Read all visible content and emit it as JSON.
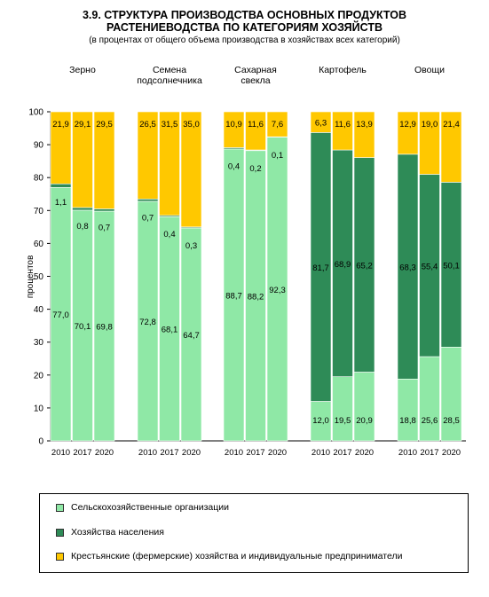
{
  "title_line1": "3.9. СТРУКТУРА ПРОИЗВОДСТВА ОСНОВНЫХ ПРОДУКТОВ",
  "title_line2": "РАСТЕНИЕВОДСТВА ПО КАТЕГОРИЯМ ХОЗЯЙСТВ",
  "subtitle": "(в процентах от общего объема производства в хозяйствах всех категорий)",
  "legend": {
    "items": [
      {
        "label": "Сельскохозяйственные организации",
        "color": "#8fe8a6"
      },
      {
        "label": "Хозяйства населения",
        "color": "#2e8b57"
      },
      {
        "label": "Крестьянские (фермерские) хозяйства и индивидуальные предприниматели",
        "color": "#ffc800"
      }
    ]
  },
  "chart_data": {
    "type": "bar",
    "stacked": true,
    "ylabel": "процентов",
    "ylim": [
      0,
      100
    ],
    "yticks": [
      0,
      10,
      20,
      30,
      40,
      50,
      60,
      70,
      80,
      90,
      100
    ],
    "grid": false,
    "legend_position": "bottom",
    "groups": [
      {
        "name_lines": [
          "Зерно"
        ],
        "years": [
          "2010",
          "2017",
          "2020"
        ],
        "series": {
          "org": [
            77.0,
            70.1,
            69.8
          ],
          "hh": [
            1.1,
            0.8,
            0.7
          ],
          "farm": [
            21.9,
            29.1,
            29.5
          ]
        },
        "labels": {
          "org": [
            "77,0",
            "70,1",
            "69,8"
          ],
          "hh": [
            "1,1",
            "0,8",
            "0,7"
          ],
          "farm": [
            "21,9",
            "29,1",
            "29,5"
          ]
        }
      },
      {
        "name_lines": [
          "Семена",
          "подсолнечника"
        ],
        "years": [
          "2010",
          "2017",
          "2020"
        ],
        "series": {
          "org": [
            72.8,
            68.1,
            64.7
          ],
          "hh": [
            0.7,
            0.4,
            0.3
          ],
          "farm": [
            26.5,
            31.5,
            35.0
          ]
        },
        "labels": {
          "org": [
            "72,8",
            "68,1",
            "64,7"
          ],
          "hh": [
            "0,7",
            "0,4",
            "0,3"
          ],
          "farm": [
            "26,5",
            "31,5",
            "35,0"
          ]
        }
      },
      {
        "name_lines": [
          "Сахарная",
          "свекла"
        ],
        "years": [
          "2010",
          "2017",
          "2020"
        ],
        "series": {
          "org": [
            88.7,
            88.2,
            92.3
          ],
          "hh": [
            0.4,
            0.2,
            0.1
          ],
          "farm": [
            10.9,
            11.6,
            7.6
          ]
        },
        "labels": {
          "org": [
            "88,7",
            "88,2",
            "92,3"
          ],
          "hh": [
            "0,4",
            "0,2",
            "0,1"
          ],
          "farm": [
            "10,9",
            "11,6",
            "7,6"
          ]
        }
      },
      {
        "name_lines": [
          "Картофель"
        ],
        "years": [
          "2010",
          "2017",
          "2020"
        ],
        "series": {
          "org": [
            12.0,
            19.5,
            20.9
          ],
          "hh": [
            81.7,
            68.9,
            65.2
          ],
          "farm": [
            6.3,
            11.6,
            13.9
          ]
        },
        "labels": {
          "org": [
            "12,0",
            "19,5",
            "20,9"
          ],
          "hh": [
            "81,7",
            "68,9",
            "65,2"
          ],
          "farm": [
            "6,3",
            "11,6",
            "13,9"
          ]
        }
      },
      {
        "name_lines": [
          "Овощи"
        ],
        "years": [
          "2010",
          "2017",
          "2020"
        ],
        "series": {
          "org": [
            18.8,
            25.6,
            28.5
          ],
          "hh": [
            68.3,
            55.4,
            50.1
          ],
          "farm": [
            12.9,
            19.0,
            21.4
          ]
        },
        "labels": {
          "org": [
            "18,8",
            "25,6",
            "28,5"
          ],
          "hh": [
            "68,3",
            "55,4",
            "50,1"
          ],
          "farm": [
            "12,9",
            "19,0",
            "21,4"
          ]
        }
      }
    ]
  }
}
